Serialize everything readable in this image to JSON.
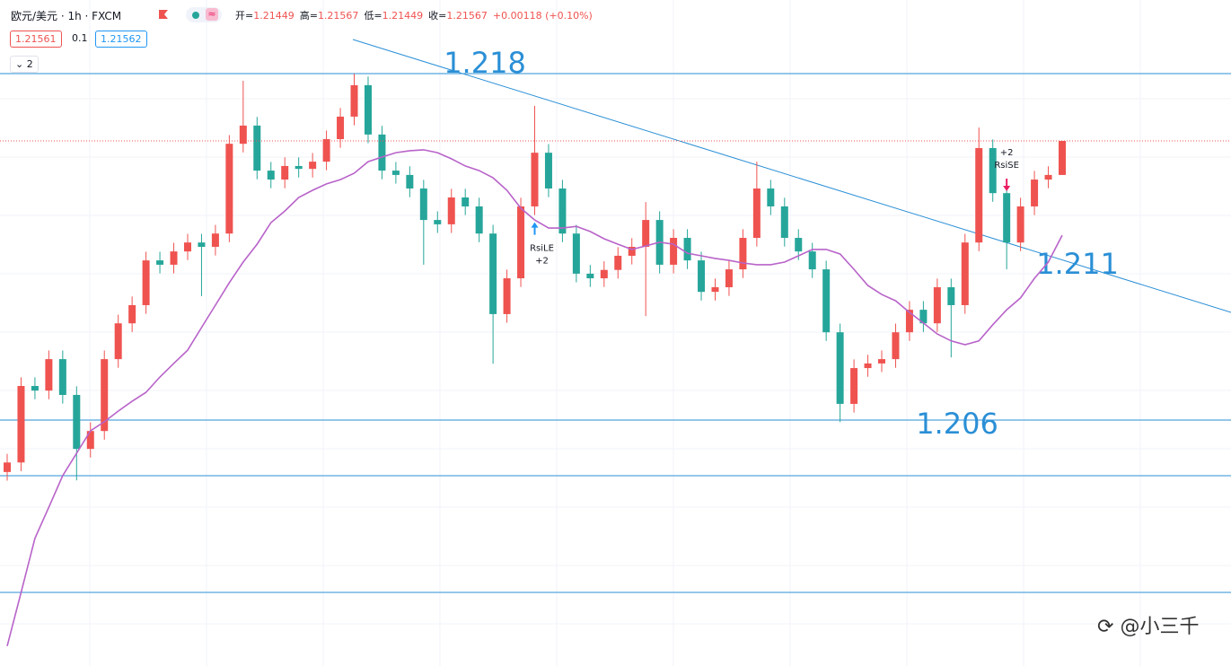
{
  "header": {
    "symbol": "欧元/美元 · 1h · FXCM",
    "ohlc": [
      {
        "key": "开=",
        "value": "1.21449"
      },
      {
        "key": "高=",
        "value": "1.21567"
      },
      {
        "key": "低=",
        "value": "1.21449"
      },
      {
        "key": "收=",
        "value": "1.21567"
      }
    ],
    "change": "+0.00118 (+0.10%)",
    "sell": "1.21561",
    "spread": "0.1",
    "buy": "1.21562",
    "indicators": "2"
  },
  "watermark": "@小三千",
  "chart_data": {
    "type": "candlestick",
    "open": [
      1.2042,
      1.20453,
      1.20718,
      1.20702,
      1.20811,
      1.20687,
      1.205,
      1.20562,
      1.20811,
      1.20935,
      1.20998,
      1.21153,
      1.21138,
      1.21184,
      1.21215,
      1.212,
      1.21246,
      1.21557,
      1.2162,
      1.21464,
      1.21433,
      1.2148,
      1.2147,
      1.21495,
      1.21573,
      1.21651,
      1.2176,
      1.21589,
      1.21464,
      1.21449,
      1.21402,
      1.21293,
      1.21278,
      1.21371,
      1.2134,
      1.21246,
      1.20967,
      1.21091,
      1.2134,
      1.21526,
      1.21402,
      1.21246,
      1.21107,
      1.21091,
      1.2112,
      1.21169,
      1.212,
      1.21293,
      1.21138,
      1.21231,
      1.21153,
      1.21044,
      1.2106,
      1.21122,
      1.21231,
      1.21402,
      1.2134,
      1.21231,
      1.21184,
      1.21122,
      1.20904,
      1.20656,
      1.2078,
      1.20796,
      1.20811,
      1.20904,
      1.20982,
      1.20935,
      1.2106,
      1.20998,
      1.21215,
      1.21542,
      1.21386,
      1.21215,
      1.2134,
      1.21433,
      1.21449
    ],
    "high": [
      1.20483,
      1.20748,
      1.20748,
      1.20841,
      1.20841,
      1.20717,
      1.20592,
      1.20841,
      1.20965,
      1.21028,
      1.21183,
      1.21183,
      1.21214,
      1.21245,
      1.21245,
      1.21276,
      1.21587,
      1.21775,
      1.2165,
      1.21494,
      1.2151,
      1.2151,
      1.21525,
      1.21603,
      1.21681,
      1.218,
      1.2179,
      1.21619,
      1.21494,
      1.21479,
      1.21432,
      1.21323,
      1.21401,
      1.21401,
      1.2137,
      1.21276,
      1.21121,
      1.2137,
      1.21688,
      1.21556,
      1.21432,
      1.21276,
      1.21137,
      1.2115,
      1.21199,
      1.2123,
      1.21355,
      1.21323,
      1.21261,
      1.21261,
      1.21183,
      1.2109,
      1.21152,
      1.21261,
      1.21495,
      1.21432,
      1.2137,
      1.21261,
      1.21214,
      1.21152,
      1.20934,
      1.2081,
      1.20826,
      1.20841,
      1.20934,
      1.21012,
      1.21012,
      1.2109,
      1.2109,
      1.21245,
      1.21613,
      1.21572,
      1.21416,
      1.2137,
      1.21463,
      1.21479,
      1.21567
    ],
    "low": [
      1.2039,
      1.20423,
      1.20672,
      1.20672,
      1.20657,
      1.20391,
      1.2047,
      1.20532,
      1.20781,
      1.20905,
      1.20968,
      1.21108,
      1.21108,
      1.21154,
      1.21029,
      1.2117,
      1.21216,
      1.21527,
      1.21434,
      1.21403,
      1.21403,
      1.2144,
      1.2144,
      1.21465,
      1.21543,
      1.21621,
      1.21559,
      1.21434,
      1.21419,
      1.21372,
      1.21138,
      1.21248,
      1.21248,
      1.2131,
      1.21216,
      1.20795,
      1.20937,
      1.21061,
      1.2131,
      1.21372,
      1.21216,
      1.21077,
      1.21061,
      1.21061,
      1.2109,
      1.21139,
      1.2096,
      1.21108,
      1.21108,
      1.21123,
      1.21014,
      1.21014,
      1.2103,
      1.21092,
      1.21201,
      1.2131,
      1.21201,
      1.21154,
      1.21092,
      1.20874,
      1.20593,
      1.20626,
      1.2075,
      1.20766,
      1.20781,
      1.20874,
      1.20905,
      1.20905,
      1.20817,
      1.20968,
      1.21185,
      1.21356,
      1.21122,
      1.21185,
      1.2131,
      1.21403,
      1.21449
    ],
    "close": [
      1.20453,
      1.20718,
      1.20702,
      1.20811,
      1.20687,
      1.205,
      1.20562,
      1.20811,
      1.20935,
      1.20998,
      1.21153,
      1.21138,
      1.21184,
      1.21215,
      1.212,
      1.21246,
      1.21557,
      1.2162,
      1.21464,
      1.21433,
      1.2148,
      1.2147,
      1.21495,
      1.21573,
      1.21651,
      1.2176,
      1.21589,
      1.21464,
      1.21449,
      1.21402,
      1.21293,
      1.21278,
      1.21371,
      1.2134,
      1.21246,
      1.20967,
      1.21091,
      1.2134,
      1.21526,
      1.21402,
      1.21246,
      1.21107,
      1.21091,
      1.2112,
      1.21169,
      1.212,
      1.21293,
      1.21138,
      1.21231,
      1.21153,
      1.21044,
      1.2106,
      1.21122,
      1.21231,
      1.21402,
      1.2134,
      1.21231,
      1.21184,
      1.21122,
      1.20904,
      1.20656,
      1.2078,
      1.20796,
      1.20811,
      1.20904,
      1.20982,
      1.20935,
      1.2106,
      1.20998,
      1.21215,
      1.21542,
      1.21386,
      1.21215,
      1.2134,
      1.21433,
      1.21449,
      1.21567
    ],
    "up_color": "#ef5350",
    "down_color": "#26a69a",
    "ma": {
      "color": "#b863c9",
      "values": [
        1.19817,
        1.20003,
        1.2019,
        1.20298,
        1.20407,
        1.20485,
        1.20563,
        1.20594,
        1.20631,
        1.20665,
        1.20696,
        1.20749,
        1.20796,
        1.20842,
        1.2092,
        1.20998,
        1.21076,
        1.21147,
        1.21209,
        1.21284,
        1.21324,
        1.21371,
        1.21396,
        1.21418,
        1.21433,
        1.21455,
        1.21495,
        1.21511,
        1.21526,
        1.21533,
        1.21536,
        1.21526,
        1.21505,
        1.2148,
        1.21464,
        1.21439,
        1.21396,
        1.21334,
        1.21293,
        1.21265,
        1.21265,
        1.21271,
        1.21253,
        1.21228,
        1.21209,
        1.21191,
        1.21203,
        1.21216,
        1.21209,
        1.21178,
        1.21169,
        1.2116,
        1.21153,
        1.21144,
        1.21138,
        1.21138,
        1.21147,
        1.21169,
        1.21191,
        1.21191,
        1.21175,
        1.21122,
        1.21066,
        1.21035,
        1.21013,
        1.20973,
        1.20936,
        1.20898,
        1.20874,
        1.20861,
        1.20874,
        1.2093,
        1.20982,
        1.21023,
        1.21091,
        1.21147,
        1.2124
      ]
    },
    "levels": [
      {
        "value": 1.218,
        "label": "1.218"
      },
      {
        "value": 1.206,
        "label": "1.206"
      },
      1.20407,
      1.20003
    ],
    "level_color": "#2a8fd6",
    "trendline_label": "1.211",
    "signals": [
      {
        "label": "RsiLE",
        "qty": "+2"
      },
      {
        "label": "RsiSE",
        "qty": "+2"
      }
    ],
    "ylim": [
      1.19748,
      1.22055
    ]
  }
}
